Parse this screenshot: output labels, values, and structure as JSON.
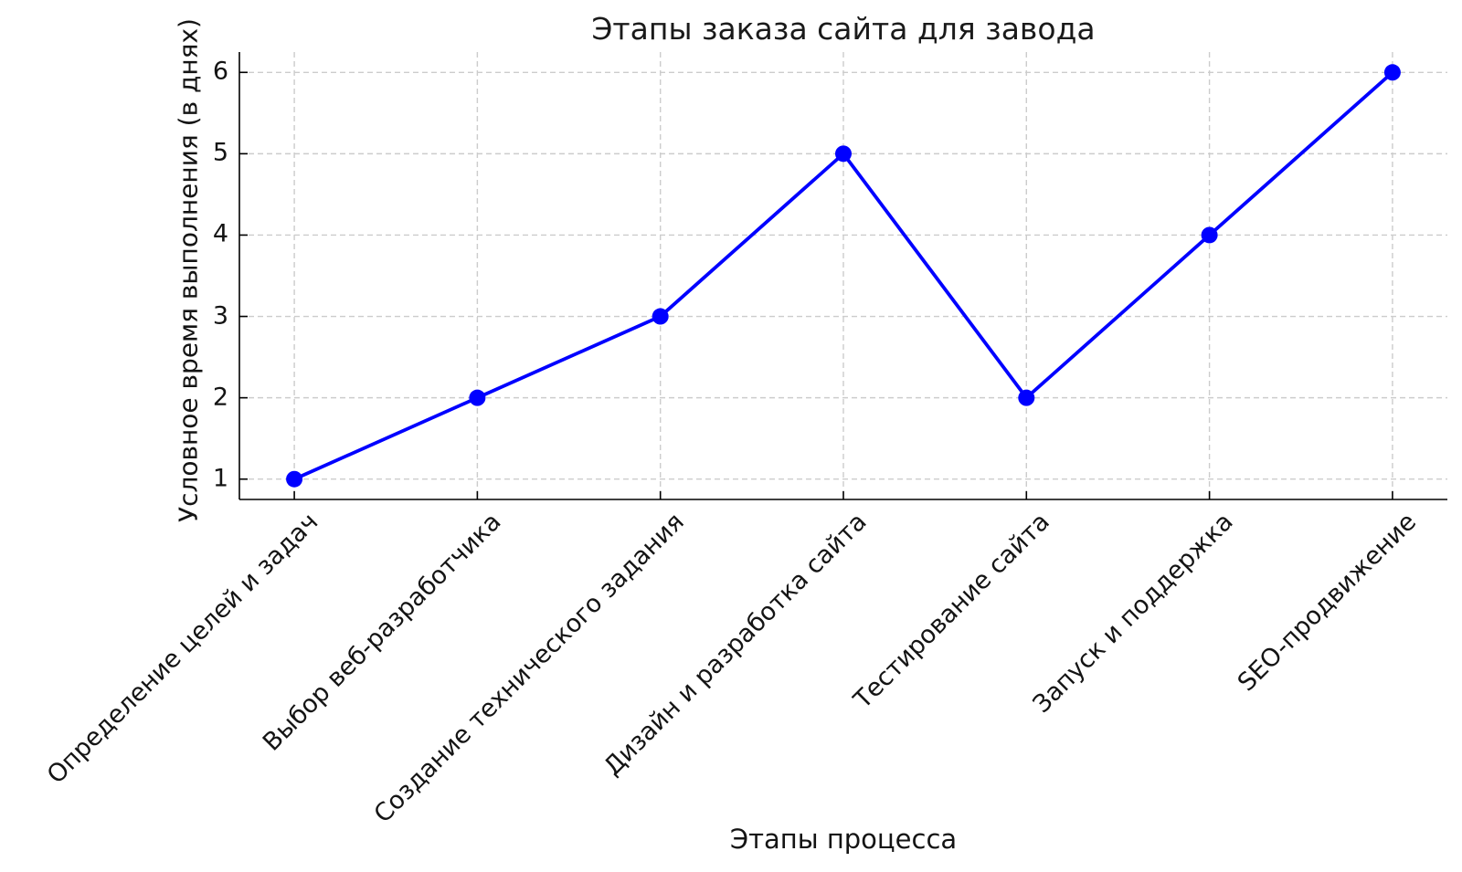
{
  "chart_data": {
    "type": "line",
    "title": "Этапы заказа сайта для завода",
    "xlabel": "Этапы процесса",
    "ylabel": "Условное время выполнения (в днях)",
    "categories": [
      "Определение целей и задач",
      "Выбор веб-разработчика",
      "Создание технического задания",
      "Дизайн и разработка сайта",
      "Тестирование сайта",
      "Запуск и поддержка",
      "SEO-продвижение"
    ],
    "values": [
      1,
      2,
      3,
      5,
      2,
      4,
      6
    ],
    "yticks": [
      1,
      2,
      3,
      4,
      5,
      6
    ],
    "ylim": [
      0.75,
      6.25
    ],
    "xlim": [
      -0.3,
      6.3
    ],
    "grid": true,
    "legend": false,
    "line_color": "#0000ff",
    "marker": "circle",
    "marker_color": "#0000ff",
    "grid_color": "#cccccc",
    "text_color": "#1a1a1a"
  }
}
